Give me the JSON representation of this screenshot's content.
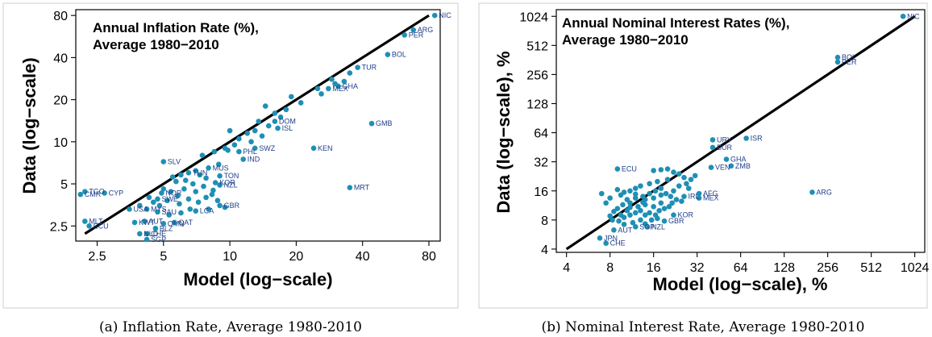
{
  "captions": [
    "(a) Inflation Rate, Average 1980-2010",
    "(b) Nominal Interest Rate, Average 1980-2010"
  ],
  "chart_data": [
    {
      "type": "scatter",
      "title": "Annual Inflation Rate (%),",
      "subtitle": "Average 1980−2010",
      "xlabel": "Model (log−scale)",
      "ylabel": "Data (log−scale)",
      "log_scale": true,
      "xlim": [
        2.0,
        90.0
      ],
      "ylim": [
        1.95,
        88.0
      ],
      "xticks": [
        2.5,
        5,
        10,
        20,
        40,
        80
      ],
      "xtick_labels": [
        "2.5",
        "5",
        "10",
        "20",
        "40",
        "80"
      ],
      "yticks": [
        2.5,
        5,
        10,
        20,
        40,
        80
      ],
      "ytick_labels": [
        "2.5",
        "5",
        "10",
        "20",
        "40",
        "80"
      ],
      "fit_line": [
        [
          2.2,
          2.2
        ],
        [
          80,
          80
        ]
      ],
      "points": [
        {
          "label": "NIC",
          "x": 85,
          "y": 80
        },
        {
          "label": "ARG",
          "x": 68,
          "y": 63
        },
        {
          "label": "PER",
          "x": 62,
          "y": 58
        },
        {
          "label": "BOL",
          "x": 52,
          "y": 42
        },
        {
          "label": "TUR",
          "x": 38,
          "y": 34
        },
        {
          "label": "MEX",
          "x": 28,
          "y": 24
        },
        {
          "label": "GHA",
          "x": 31,
          "y": 25
        },
        {
          "label": "GMB",
          "x": 44,
          "y": 13.5
        },
        {
          "label": "MRT",
          "x": 35,
          "y": 4.7
        },
        {
          "label": "KEN",
          "x": 24,
          "y": 9
        },
        {
          "label": "ISL",
          "x": 16.5,
          "y": 12.5
        },
        {
          "label": "DOM",
          "x": 16,
          "y": 14
        },
        {
          "label": "PHL",
          "x": 11,
          "y": 8.5
        },
        {
          "label": "IND",
          "x": 11.5,
          "y": 7.5
        },
        {
          "label": "SWZ",
          "x": 13,
          "y": 9
        },
        {
          "label": "SLV",
          "x": 5,
          "y": 7.2
        },
        {
          "label": "MUS",
          "x": 8,
          "y": 6.5
        },
        {
          "label": "TUN",
          "x": 6.5,
          "y": 6
        },
        {
          "label": "TON",
          "x": 9,
          "y": 5.7
        },
        {
          "label": "NZL",
          "x": 9,
          "y": 4.9
        },
        {
          "label": "KOR",
          "x": 8.6,
          "y": 5.1
        },
        {
          "label": "CYP",
          "x": 2.7,
          "y": 4.3
        },
        {
          "label": "TGO",
          "x": 2.2,
          "y": 4.4
        },
        {
          "label": "CMR",
          "x": 2.1,
          "y": 4.2
        },
        {
          "label": "NOR",
          "x": 4.9,
          "y": 4.3
        },
        {
          "label": "SWE",
          "x": 4.7,
          "y": 3.9
        },
        {
          "label": "GBR",
          "x": 9,
          "y": 3.5
        },
        {
          "label": "LCA",
          "x": 7,
          "y": 3.2
        },
        {
          "label": "QAT",
          "x": 5.6,
          "y": 2.65
        },
        {
          "label": "MLT",
          "x": 2.2,
          "y": 2.7
        },
        {
          "label": "ECU",
          "x": 2.3,
          "y": 2.5
        },
        {
          "label": "MYS",
          "x": 4.2,
          "y": 3.3
        },
        {
          "label": "SAU",
          "x": 4.7,
          "y": 3.15
        },
        {
          "label": "KWT",
          "x": 3.7,
          "y": 2.65
        },
        {
          "label": "AUT",
          "x": 4.1,
          "y": 2.7
        },
        {
          "label": "OMN",
          "x": 5.0,
          "y": 2.6
        },
        {
          "label": "BLZ",
          "x": 4.6,
          "y": 2.4
        },
        {
          "label": "NLD",
          "x": 3.9,
          "y": 2.2
        },
        {
          "label": "CHE",
          "x": 4.2,
          "y": 2.2
        },
        {
          "label": "SGP",
          "x": 4.2,
          "y": 2.0
        },
        {
          "label": "USA",
          "x": 3.5,
          "y": 3.3
        }
      ],
      "unlabeled_points": [
        [
          11,
          10.5
        ],
        [
          12,
          11.5
        ],
        [
          13,
          12
        ],
        [
          12.5,
          10
        ],
        [
          14,
          11
        ],
        [
          15,
          13
        ],
        [
          17,
          15
        ],
        [
          18,
          17
        ],
        [
          16,
          16
        ],
        [
          13.5,
          14
        ],
        [
          10.5,
          9.5
        ],
        [
          9.5,
          9
        ],
        [
          8.5,
          8.5
        ],
        [
          7.5,
          8
        ],
        [
          10,
          12
        ],
        [
          14.5,
          18
        ],
        [
          19,
          21
        ],
        [
          21,
          19
        ],
        [
          25,
          24
        ],
        [
          29,
          28
        ],
        [
          33,
          27
        ],
        [
          30,
          26
        ],
        [
          26,
          22
        ],
        [
          35,
          31
        ],
        [
          6,
          5.8
        ],
        [
          5.5,
          5.6
        ],
        [
          7,
          6.2
        ],
        [
          7.8,
          5.5
        ],
        [
          6.8,
          5
        ],
        [
          6.2,
          4.6
        ],
        [
          5.8,
          4.1
        ],
        [
          6.5,
          3.9
        ],
        [
          7.2,
          3.7
        ],
        [
          7.8,
          4
        ],
        [
          8.3,
          4.2
        ],
        [
          8.8,
          3.8
        ],
        [
          9.5,
          3.4
        ],
        [
          8,
          3.3
        ],
        [
          6.6,
          3.3
        ],
        [
          5.9,
          3.6
        ],
        [
          5.2,
          3.8
        ],
        [
          4.5,
          3.7
        ],
        [
          4.3,
          4.0
        ],
        [
          3.9,
          3.5
        ],
        [
          4.8,
          3.5
        ],
        [
          5.3,
          3.0
        ],
        [
          6.0,
          3.1
        ],
        [
          5.0,
          4.6
        ],
        [
          5.4,
          4.4
        ],
        [
          7.0,
          4.4
        ],
        [
          7.6,
          4.8
        ],
        [
          8.4,
          4.5
        ],
        [
          6.3,
          5.3
        ],
        [
          5.7,
          5.2
        ],
        [
          7.3,
          5.8
        ],
        [
          8.9,
          6.9
        ],
        [
          9.8,
          8.7
        ]
      ]
    },
    {
      "type": "scatter",
      "title": "Annual Nominal Interest Rates (%),",
      "subtitle": "Average 1980−2010",
      "xlabel": "Model (log−scale), %",
      "ylabel": "Data (log−scale), %",
      "log_scale": true,
      "xlim": [
        3.4,
        1200
      ],
      "ylim": [
        3.7,
        1200
      ],
      "xticks": [
        4,
        8,
        16,
        32,
        64,
        128,
        256,
        512,
        1024
      ],
      "xtick_labels": [
        "4",
        "8",
        "16",
        "32",
        "64",
        "128",
        "256",
        "512",
        "1024"
      ],
      "yticks": [
        4,
        8,
        16,
        32,
        64,
        128,
        256,
        512,
        1024
      ],
      "ytick_labels": [
        "4",
        "8",
        "16",
        "32",
        "64",
        "128",
        "256",
        "512",
        "1024"
      ],
      "fit_line": [
        [
          4,
          4
        ],
        [
          1024,
          1024
        ]
      ],
      "points": [
        {
          "label": "NIC",
          "x": 850,
          "y": 1024
        },
        {
          "label": "BOL",
          "x": 300,
          "y": 385
        },
        {
          "label": "PER",
          "x": 300,
          "y": 345
        },
        {
          "label": "ISR",
          "x": 70,
          "y": 56
        },
        {
          "label": "URY",
          "x": 41,
          "y": 54
        },
        {
          "label": "BUR",
          "x": 41,
          "y": 45
        },
        {
          "label": "GHA",
          "x": 51,
          "y": 34
        },
        {
          "label": "ZMB",
          "x": 55,
          "y": 29
        },
        {
          "label": "VEN",
          "x": 40,
          "y": 28
        },
        {
          "label": "ARG",
          "x": 200,
          "y": 15.5
        },
        {
          "label": "ECU",
          "x": 9,
          "y": 27
        },
        {
          "label": "AFG",
          "x": 33,
          "y": 15
        },
        {
          "label": "MEX",
          "x": 33,
          "y": 13.5
        },
        {
          "label": "IRL",
          "x": 26,
          "y": 14
        },
        {
          "label": "KOR",
          "x": 22,
          "y": 9
        },
        {
          "label": "GBR",
          "x": 19,
          "y": 7.8
        },
        {
          "label": "AUT",
          "x": 8.5,
          "y": 6.3
        },
        {
          "label": "SGP",
          "x": 12,
          "y": 6.8
        },
        {
          "label": "NZL",
          "x": 14.5,
          "y": 6.8
        },
        {
          "label": "JPN",
          "x": 6.8,
          "y": 5.2
        },
        {
          "label": "CHE",
          "x": 7.5,
          "y": 4.6
        }
      ],
      "unlabeled_points": [
        [
          16,
          26
        ],
        [
          18,
          26.5
        ],
        [
          20,
          27
        ],
        [
          22,
          25
        ],
        [
          24,
          24
        ],
        [
          26,
          22
        ],
        [
          20,
          21
        ],
        [
          17,
          20
        ],
        [
          15,
          19
        ],
        [
          13,
          18
        ],
        [
          12,
          17
        ],
        [
          11,
          16
        ],
        [
          10,
          15.5
        ],
        [
          9.5,
          14.5
        ],
        [
          9,
          16.5
        ],
        [
          10.5,
          13
        ],
        [
          12,
          13.5
        ],
        [
          13.5,
          14
        ],
        [
          15,
          15
        ],
        [
          16.5,
          16
        ],
        [
          18,
          17
        ],
        [
          19.5,
          15
        ],
        [
          21,
          14
        ],
        [
          23,
          13
        ],
        [
          25,
          12.5
        ],
        [
          22,
          16
        ],
        [
          24,
          18
        ],
        [
          27,
          19
        ],
        [
          29,
          21
        ],
        [
          31,
          23
        ],
        [
          28,
          17
        ],
        [
          18,
          12
        ],
        [
          16,
          11
        ],
        [
          14,
          11.5
        ],
        [
          12.5,
          11
        ],
        [
          11,
          12
        ],
        [
          9.8,
          11.5
        ],
        [
          9,
          10.5
        ],
        [
          8.5,
          9.8
        ],
        [
          8,
          8.8
        ],
        [
          8.3,
          8
        ],
        [
          9.2,
          7.8
        ],
        [
          10,
          8.5
        ],
        [
          11,
          9
        ],
        [
          12,
          9.5
        ],
        [
          13,
          10
        ],
        [
          14,
          9
        ],
        [
          15,
          9.5
        ],
        [
          16.5,
          9
        ],
        [
          17.5,
          10
        ],
        [
          19,
          10.5
        ],
        [
          20.5,
          11
        ],
        [
          21.5,
          12
        ],
        [
          13,
          8
        ],
        [
          11.5,
          7.5
        ],
        [
          10,
          7.2
        ],
        [
          14,
          7.3
        ],
        [
          15.5,
          8
        ],
        [
          17,
          8.3
        ],
        [
          7.5,
          12
        ],
        [
          8,
          13.5
        ],
        [
          7,
          15
        ],
        [
          14,
          13
        ],
        [
          16,
          13.5
        ],
        [
          18,
          14.5
        ],
        [
          12,
          14.8
        ],
        [
          10.5,
          10
        ],
        [
          9.5,
          9
        ],
        [
          11,
          10.8
        ],
        [
          13.5,
          12.2
        ]
      ]
    }
  ]
}
